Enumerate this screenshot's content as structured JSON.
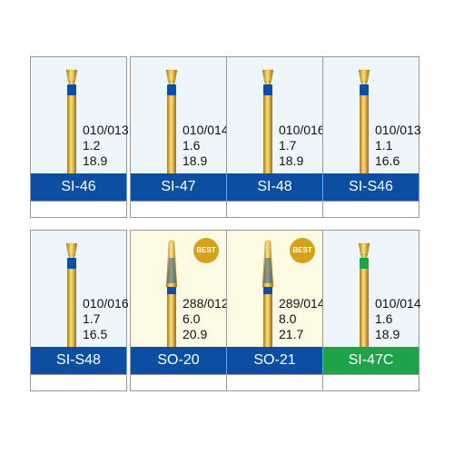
{
  "cards": [
    {
      "label": "SI-46",
      "specs": [
        "010/013",
        "1.2",
        "18.9"
      ],
      "color": "#0b4ea2",
      "head": "round"
    },
    {
      "label": "SI-47",
      "specs": [
        "010/014",
        "1.6",
        "18.9"
      ],
      "color": "#0b4ea2",
      "head": "round"
    },
    {
      "label": "SI-48",
      "specs": [
        "010/016",
        "1.7",
        "18.9"
      ],
      "color": "#0b4ea2",
      "head": "round"
    },
    {
      "label": "SI-S46",
      "specs": [
        "010/013",
        "1.1",
        "16.6"
      ],
      "color": "#0b4ea2",
      "head": "round"
    },
    {
      "label": "SI-S48",
      "specs": [
        "010/016",
        "1.7",
        "16.5"
      ],
      "color": "#0b4ea2",
      "head": "round"
    },
    {
      "label": "SO-20",
      "specs": [
        "288/012",
        "6.0",
        "20.9"
      ],
      "color": "#0b4ea2",
      "head": "taper",
      "badge": "BEST"
    },
    {
      "label": "SO-21",
      "specs": [
        "289/014",
        "8.0",
        "21.7"
      ],
      "color": "#0b4ea2",
      "head": "taper",
      "badge": "BEST"
    },
    {
      "label": "SI-47C",
      "specs": [
        "010/014",
        "1.6",
        "18.9"
      ],
      "color": "#1ea34b",
      "head": "round"
    }
  ]
}
